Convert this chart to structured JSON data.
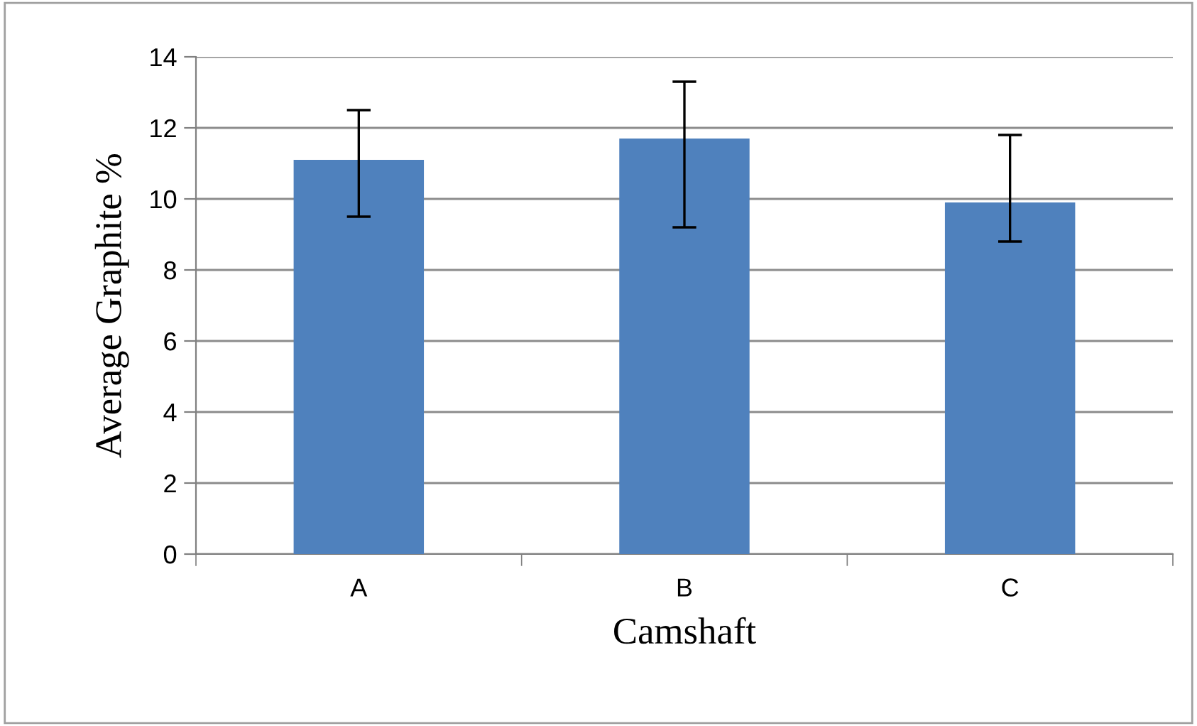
{
  "chart_data": {
    "type": "bar",
    "xlabel": "Camshaft",
    "ylabel": "Average Graphite %",
    "categories": [
      "A",
      "B",
      "C"
    ],
    "values": [
      11.1,
      11.7,
      9.9
    ],
    "errors": [
      [
        9.5,
        12.5
      ],
      [
        9.2,
        13.3
      ],
      [
        8.8,
        11.8
      ]
    ],
    "color": "#4f81bd",
    "ylim": [
      0,
      14
    ],
    "yticks": [
      0,
      2,
      4,
      6,
      8,
      10,
      12,
      14
    ],
    "grid": "y"
  }
}
